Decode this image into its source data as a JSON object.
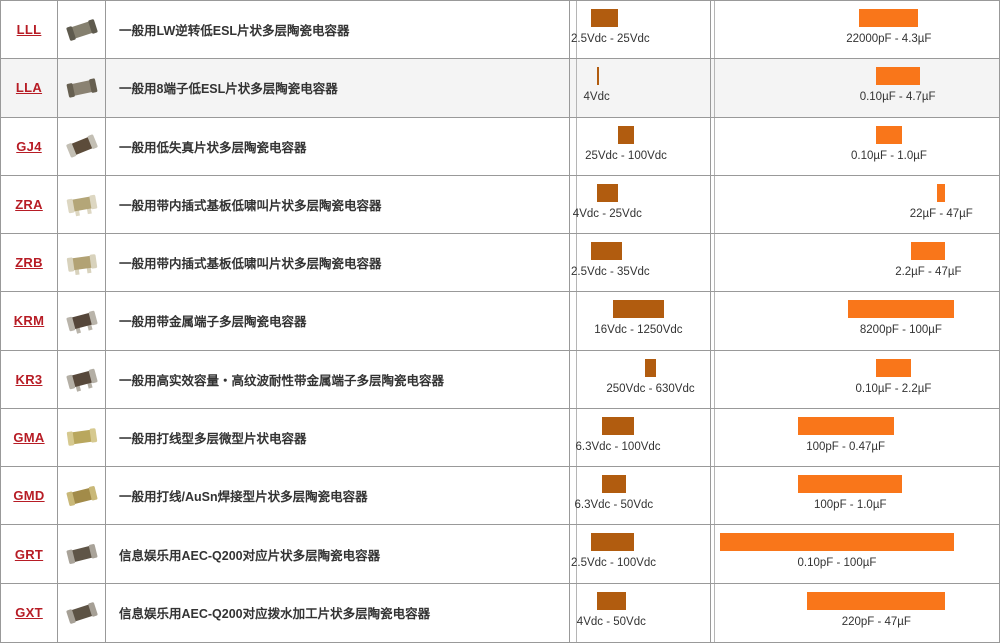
{
  "page": {
    "background": "#ffffff",
    "border_color": "#999999"
  },
  "table": {
    "link_color": "#b71c25",
    "highlight_row_color": "#f4f4f4",
    "voltage_bar_color": "#b15c0f",
    "capacitance_bar_color": "#f9761a",
    "grid_solid_color": "#b5b5b5",
    "grid_dotted_color": "#cccccc",
    "rows": [
      {
        "series": "LLL",
        "description": "一般用LW逆转低ESL片状多层陶瓷电容器",
        "highlight": false,
        "icon": {
          "name": "chip-capacitor-photo",
          "body": "#85806f",
          "cap": "#5f5b4e",
          "variant": "chip",
          "angle": -18
        }
      },
      {
        "series": "LLA",
        "description": "一般用8端子低ESL片状多层陶瓷电容器",
        "highlight": true,
        "icon": {
          "name": "chip-capacitor-photo",
          "body": "#8a8272",
          "cap": "#665f50",
          "variant": "chip",
          "angle": -12
        }
      },
      {
        "series": "GJ4",
        "description": "一般用低失真片状多层陶瓷电容器",
        "highlight": false,
        "icon": {
          "name": "chip-capacitor-photo",
          "body": "#5c4c3a",
          "cap": "#c3bfb4",
          "variant": "chip",
          "angle": -22
        }
      },
      {
        "series": "ZRA",
        "description": "一般用带内插式基板低啸叫片状多层陶瓷电容器",
        "highlight": false,
        "icon": {
          "name": "chip-capacitor-photo",
          "body": "#b4a678",
          "cap": "#ddd7c2",
          "variant": "legs",
          "angle": -10
        }
      },
      {
        "series": "ZRB",
        "description": "一般用带内插式基板低啸叫片状多层陶瓷电容器",
        "highlight": false,
        "icon": {
          "name": "chip-capacitor-photo",
          "body": "#b2a274",
          "cap": "#d8d2bc",
          "variant": "legs",
          "angle": -8
        }
      },
      {
        "series": "KRM",
        "description": "一般用带金属端子多层陶瓷电容器",
        "highlight": false,
        "icon": {
          "name": "chip-capacitor-photo",
          "body": "#55463a",
          "cap": "#b9b4aa",
          "variant": "legs",
          "angle": -15
        }
      },
      {
        "series": "KR3",
        "description": "一般用高实效容量・高纹波耐性带金属端子多层陶瓷电容器",
        "highlight": false,
        "icon": {
          "name": "chip-capacitor-photo",
          "body": "#57483b",
          "cap": "#b4afa5",
          "variant": "legs",
          "angle": -15
        }
      },
      {
        "series": "GMA",
        "description": "一般用打线型多层微型片状电容器",
        "highlight": false,
        "icon": {
          "name": "chip-capacitor-photo",
          "body": "#b9a75e",
          "cap": "#d6c98f",
          "variant": "chip",
          "angle": -8
        }
      },
      {
        "series": "GMD",
        "description": "一般用打线/AuSn焊接型片状多层陶瓷电容器",
        "highlight": false,
        "icon": {
          "name": "chip-capacitor-photo",
          "body": "#a28b49",
          "cap": "#c9b878",
          "variant": "chip",
          "angle": -14
        }
      },
      {
        "series": "GRT",
        "description": "信息娱乐用AEC-Q200对应片状多层陶瓷电容器",
        "highlight": false,
        "icon": {
          "name": "chip-capacitor-photo",
          "body": "#5f5547",
          "cap": "#a9a399",
          "variant": "chip",
          "angle": -14
        }
      },
      {
        "series": "GXT",
        "description": "信息娱乐用AEC-Q200对应拨水加工片状多层陶瓷电容器",
        "highlight": false,
        "icon": {
          "name": "chip-capacitor-photo",
          "body": "#5d5345",
          "cap": "#a6a096",
          "variant": "chip",
          "angle": -18
        }
      }
    ]
  },
  "chart_data": [
    {
      "type": "bar",
      "subtype": "floating-range",
      "orientation": "horizontal",
      "x_scale": "log",
      "unit": "Vdc",
      "title": "",
      "grid": "vertical, solid major with dotted minor lines",
      "categories": [
        "LLL",
        "LLA",
        "GJ4",
        "ZRA",
        "ZRB",
        "KRM",
        "KR3",
        "GMA",
        "GMD",
        "GRT",
        "GXT"
      ],
      "ranges": [
        [
          2.5,
          25
        ],
        [
          4,
          4
        ],
        [
          25,
          100
        ],
        [
          4,
          25
        ],
        [
          2.5,
          35
        ],
        [
          16,
          1250
        ],
        [
          250,
          630
        ],
        [
          6.3,
          100
        ],
        [
          6.3,
          50
        ],
        [
          2.5,
          100
        ],
        [
          4,
          50
        ]
      ],
      "labels": [
        "2.5Vdc - 25Vdc",
        "4Vdc",
        "25Vdc - 100Vdc",
        "4Vdc - 25Vdc",
        "2.5Vdc - 35Vdc",
        "16Vdc - 1250Vdc",
        "250Vdc - 630Vdc",
        "6.3Vdc - 100Vdc",
        "6.3Vdc - 50Vdc",
        "2.5Vdc - 100Vdc",
        "4Vdc - 50Vdc"
      ]
    },
    {
      "type": "bar",
      "subtype": "floating-range",
      "orientation": "horizontal",
      "x_scale": "log",
      "unit": "µF",
      "title": "",
      "grid": "vertical, alternating solid and dotted lines",
      "categories": [
        "LLL",
        "LLA",
        "GJ4",
        "ZRA",
        "ZRB",
        "KRM",
        "KR3",
        "GMA",
        "GMD",
        "GRT",
        "GXT"
      ],
      "ranges": [
        [
          0.022,
          4.3
        ],
        [
          0.1,
          4.7
        ],
        [
          0.1,
          1.0
        ],
        [
          22,
          47
        ],
        [
          2.2,
          47
        ],
        [
          0.0082,
          100
        ],
        [
          0.1,
          2.2
        ],
        [
          0.0001,
          0.47
        ],
        [
          0.0001,
          1.0
        ],
        [
          1e-07,
          100
        ],
        [
          0.00022,
          47
        ]
      ],
      "labels": [
        "22000pF - 4.3µF",
        "0.10µF - 4.7µF",
        "0.10µF - 1.0µF",
        "22µF - 47µF",
        "2.2µF - 47µF",
        "8200pF - 100µF",
        "0.10µF - 2.2µF",
        "100pF - 0.47µF",
        "100pF - 1.0µF",
        "0.10pF - 100µF",
        "220pF - 47µF"
      ]
    }
  ]
}
